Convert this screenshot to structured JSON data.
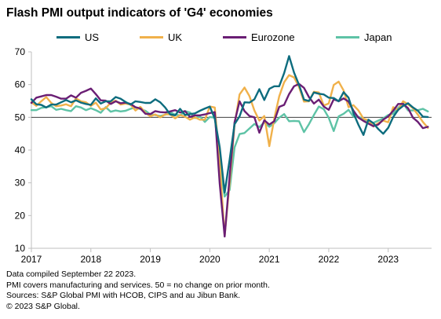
{
  "title": "Flash PMI output indicators of 'G4' economies",
  "notes": [
    "Data compiled September 22 2023.",
    "PMI covers manufacturing and services. 50 = no change on prior month.",
    "Sources: S&P Global PMI with HCOB, CIPS and au Jibun Bank.",
    "© 2023 S&P Global."
  ],
  "colors": {
    "US": "#0d6c7e",
    "UK": "#f0b14b",
    "Eurozone": "#6a1e74",
    "Japan": "#5ec3a6",
    "reference_line": "#222222",
    "axis": "#bfbfbf"
  },
  "chart_data": {
    "type": "line",
    "ylim": [
      10,
      70
    ],
    "y_ticks": [
      "10",
      "20",
      "30",
      "40",
      "50",
      "60",
      "70"
    ],
    "x_ticks": [
      "2017",
      "2018",
      "2019",
      "2020",
      "2021",
      "2022",
      "2023"
    ],
    "x_start": "2017-01",
    "reference_line": 50,
    "legend_position": "top",
    "series": [
      {
        "name": "US",
        "values": [
          55.5,
          54.0,
          53.8,
          53.0,
          53.9,
          53.9,
          54.6,
          55.3,
          54.6,
          55.2,
          54.5,
          54.1,
          53.8,
          55.8,
          54.2,
          54.9,
          54.9,
          56.2,
          55.7,
          54.7,
          53.9,
          54.9,
          54.7,
          54.4,
          54.4,
          55.5,
          54.6,
          53.0,
          50.9,
          50.6,
          52.6,
          50.7,
          51.0,
          51.2,
          52.0,
          52.7,
          53.3,
          49.6,
          40.9,
          27.0,
          37.0,
          47.9,
          50.3,
          54.6,
          54.5,
          55.5,
          58.6,
          55.3,
          58.7,
          59.5,
          59.5,
          63.5,
          68.7,
          63.7,
          59.9,
          55.4,
          55.0,
          57.6,
          57.2,
          57.0,
          56.0,
          55.9,
          54.9,
          57.7,
          56.0,
          51.2,
          47.7,
          44.6,
          49.3,
          48.2,
          46.4,
          45.0,
          46.8,
          50.1,
          52.3,
          53.5,
          54.3,
          53.0,
          52.0,
          50.2,
          50.1
        ]
      },
      {
        "name": "UK",
        "values": [
          54.6,
          53.5,
          54.9,
          56.2,
          54.4,
          53.4,
          53.6,
          54.0,
          53.4,
          55.8,
          54.9,
          54.6,
          53.5,
          54.5,
          52.4,
          52.8,
          54.5,
          55.1,
          53.9,
          54.2,
          53.9,
          52.1,
          53.2,
          51.4,
          50.3,
          50.9,
          50.0,
          50.9,
          50.9,
          49.7,
          50.7,
          50.2,
          49.3,
          50.0,
          49.3,
          49.3,
          53.3,
          53.0,
          36.0,
          13.8,
          30.0,
          47.7,
          57.0,
          59.1,
          56.5,
          52.1,
          49.0,
          50.4,
          41.2,
          49.6,
          56.4,
          60.7,
          62.9,
          62.2,
          59.2,
          54.8,
          54.9,
          57.8,
          57.6,
          53.6,
          54.2,
          59.9,
          60.9,
          58.2,
          53.1,
          53.7,
          52.1,
          49.6,
          49.1,
          47.2,
          48.2,
          49.0,
          48.5,
          53.1,
          52.2,
          54.9,
          54.0,
          52.8,
          50.8,
          48.6,
          46.8
        ]
      },
      {
        "name": "Eurozone",
        "values": [
          54.4,
          56.0,
          56.4,
          56.8,
          56.8,
          56.3,
          55.7,
          55.7,
          56.7,
          56.0,
          57.5,
          58.1,
          58.8,
          57.1,
          55.2,
          55.1,
          54.1,
          54.9,
          54.3,
          54.5,
          54.1,
          53.1,
          52.7,
          51.1,
          51.0,
          51.9,
          51.6,
          51.5,
          51.8,
          52.2,
          51.5,
          51.9,
          50.1,
          50.6,
          50.6,
          50.9,
          51.3,
          51.6,
          29.7,
          13.6,
          31.9,
          48.5,
          54.9,
          51.9,
          50.4,
          50.0,
          45.3,
          49.1,
          47.8,
          48.8,
          53.2,
          53.8,
          57.1,
          59.5,
          60.2,
          59.0,
          56.2,
          54.2,
          55.4,
          53.3,
          52.3,
          55.5,
          54.9,
          55.8,
          54.8,
          52.0,
          49.9,
          48.9,
          48.1,
          47.3,
          47.8,
          49.3,
          50.3,
          52.0,
          54.1,
          54.1,
          52.8,
          49.9,
          48.6,
          46.7,
          47.1
        ]
      },
      {
        "name": "Japan",
        "values": [
          52.2,
          52.2,
          52.9,
          53.1,
          53.4,
          52.3,
          52.6,
          52.2,
          51.9,
          53.4,
          53.0,
          52.2,
          52.8,
          52.2,
          51.4,
          53.1,
          51.7,
          52.1,
          51.8,
          52.0,
          52.6,
          53.0,
          52.5,
          52.0,
          50.9,
          50.7,
          50.4,
          50.8,
          51.6,
          50.8,
          50.6,
          51.9,
          51.5,
          49.8,
          50.3,
          48.6,
          50.1,
          49.9,
          36.2,
          25.8,
          27.8,
          40.8,
          44.9,
          45.2,
          46.6,
          48.0,
          47.0,
          48.5,
          47.1,
          48.2,
          49.9,
          51.0,
          48.8,
          48.9,
          48.8,
          45.5,
          47.9,
          50.7,
          53.3,
          52.5,
          49.9,
          45.8,
          50.3,
          51.1,
          52.3,
          50.2,
          50.2,
          49.4,
          48.9,
          48.3,
          49.0,
          49.7,
          50.7,
          51.1,
          52.9,
          54.3,
          52.1,
          52.1,
          52.2,
          52.6,
          51.8
        ]
      }
    ]
  }
}
